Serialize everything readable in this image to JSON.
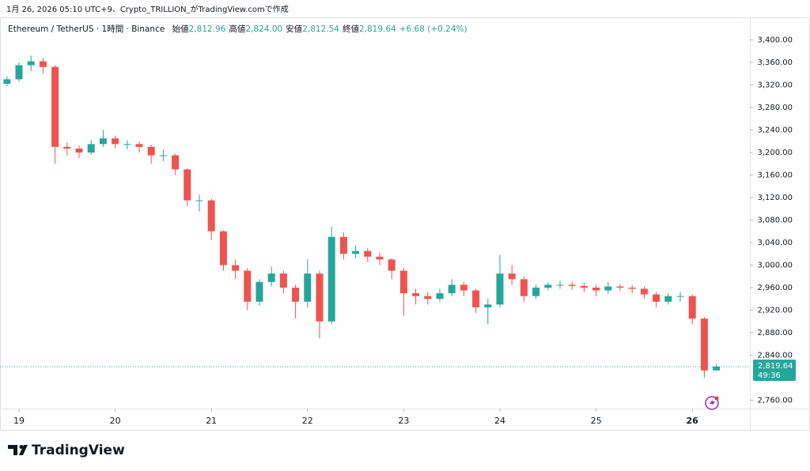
{
  "chart_data": {
    "type": "candlestick",
    "caption": "1月 26, 2026 05:10 UTC+9、Crypto_TRILLION_がTradingView.comで作成",
    "title": "Ethereum / TetherUS · 1時間 · Binance",
    "ohlc_header": {
      "labels": [
        "始値",
        "高値",
        "安値",
        "終値"
      ],
      "values": [
        "2,812.96",
        "2,824.00",
        "2,812.54",
        "2,819.64"
      ]
    },
    "change": "+6.68 (+0.24%)",
    "open": [
      3322,
      3330,
      3355,
      3362,
      3352,
      3210,
      3207,
      3200,
      3215,
      3225,
      3215,
      3215,
      3210,
      3195,
      3195,
      3170,
      3115,
      3115,
      3060,
      3000,
      2990,
      2935,
      2970,
      2985,
      2960,
      2935,
      2985,
      2900,
      3050,
      3020,
      3025,
      3015,
      3010,
      2990,
      2950,
      2945,
      2940,
      2950,
      2965,
      2955,
      2925,
      2930,
      2985,
      2975,
      2945,
      2960,
      2965,
      2965,
      2963,
      2960,
      2955,
      2962,
      2960,
      2958,
      2948,
      2935,
      2945,
      2945,
      2905,
      2812.96
    ],
    "high": [
      3335,
      3360,
      3372,
      3368,
      3355,
      3218,
      3212,
      3222,
      3240,
      3230,
      3222,
      3220,
      3214,
      3205,
      3198,
      3172,
      3125,
      3118,
      3062,
      3010,
      2995,
      2975,
      2998,
      2990,
      2965,
      3010,
      2990,
      3068,
      3058,
      3035,
      3030,
      3022,
      3012,
      2995,
      2958,
      2952,
      2958,
      2975,
      2970,
      2958,
      2940,
      3018,
      3000,
      2980,
      2965,
      2970,
      2972,
      2970,
      2968,
      2965,
      2970,
      2966,
      2965,
      2962,
      2952,
      2950,
      2952,
      2948,
      2908,
      2824
    ],
    "low": [
      3318,
      3326,
      3345,
      3340,
      3180,
      3195,
      3190,
      3196,
      3210,
      3208,
      3206,
      3200,
      3180,
      3185,
      3160,
      3105,
      3095,
      3045,
      2990,
      2975,
      2920,
      2928,
      2962,
      2950,
      2905,
      2925,
      2870,
      2895,
      3010,
      3012,
      3005,
      3000,
      2975,
      2910,
      2930,
      2930,
      2935,
      2945,
      2945,
      2915,
      2895,
      2925,
      2965,
      2935,
      2940,
      2955,
      2958,
      2956,
      2952,
      2945,
      2950,
      2954,
      2950,
      2940,
      2925,
      2930,
      2935,
      2895,
      2800,
      2812.54
    ],
    "close": [
      3330,
      3355,
      3362,
      3352,
      3210,
      3207,
      3200,
      3215,
      3225,
      3215,
      3215,
      3210,
      3195,
      3195,
      3170,
      3115,
      3115,
      3060,
      3000,
      2990,
      2935,
      2970,
      2985,
      2960,
      2935,
      2985,
      2900,
      3050,
      3020,
      3025,
      3015,
      3010,
      2990,
      2950,
      2945,
      2940,
      2950,
      2965,
      2955,
      2925,
      2930,
      2985,
      2975,
      2945,
      2960,
      2965,
      2965,
      2963,
      2960,
      2955,
      2962,
      2960,
      2958,
      2948,
      2935,
      2945,
      2945,
      2905,
      2812.96,
      2819.64
    ],
    "up_color": "#26a69a",
    "down_color": "#ef5350",
    "ylim": [
      2748,
      3440
    ],
    "yticks": [
      {
        "value": 2760,
        "label": "2,760.00"
      },
      {
        "value": 2840,
        "label": "2,840.00"
      },
      {
        "value": 2880,
        "label": "2,880.00"
      },
      {
        "value": 2920,
        "label": "2,920.00"
      },
      {
        "value": 2960,
        "label": "2,960.00"
      },
      {
        "value": 3000,
        "label": "3,000.00"
      },
      {
        "value": 3040,
        "label": "3,040.00"
      },
      {
        "value": 3080,
        "label": "3,080.00"
      },
      {
        "value": 3120,
        "label": "3,120.00"
      },
      {
        "value": 3160,
        "label": "3,160.00"
      },
      {
        "value": 3200,
        "label": "3,200.00"
      },
      {
        "value": 3240,
        "label": "3,240.00"
      },
      {
        "value": 3280,
        "label": "3,280.00"
      },
      {
        "value": 3320,
        "label": "3,320.00"
      },
      {
        "value": 3360,
        "label": "3,360.00"
      },
      {
        "value": 3400,
        "label": "3,400.00"
      }
    ],
    "xticks": [
      {
        "value": 1,
        "label": "19"
      },
      {
        "value": 9,
        "label": "20"
      },
      {
        "value": 17,
        "label": "21"
      },
      {
        "value": 25,
        "label": "22"
      },
      {
        "value": 33,
        "label": "23"
      },
      {
        "value": 41,
        "label": "24"
      },
      {
        "value": 49,
        "label": "25"
      },
      {
        "value": 57,
        "label": "26"
      }
    ],
    "last_price": {
      "value": 2819.64,
      "label": "2,819.64"
    },
    "countdown": "49:36",
    "brand": "TradingView"
  }
}
